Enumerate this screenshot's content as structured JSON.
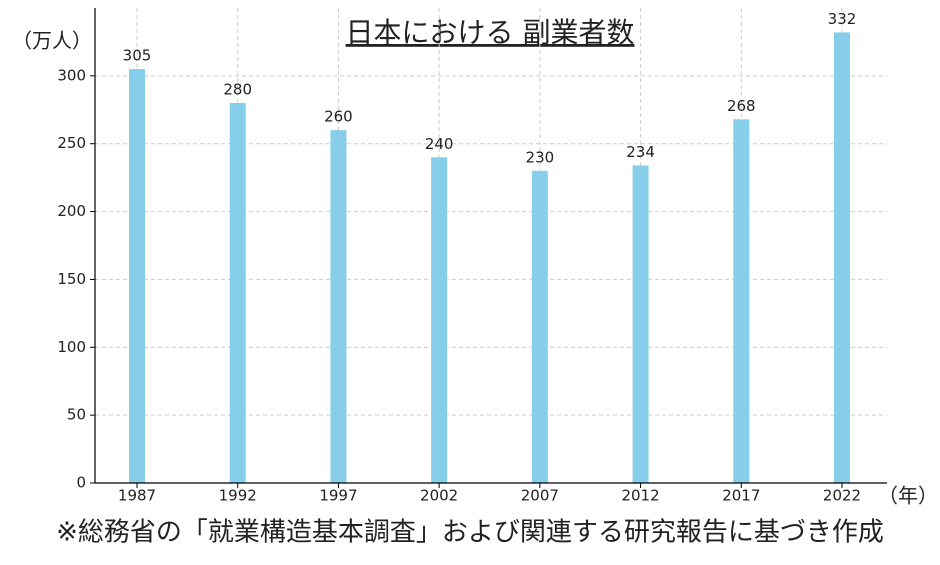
{
  "chart_data": {
    "type": "bar",
    "title": "日本における 副業者数",
    "y_label": "（万人）",
    "x_label": "（年）",
    "footnote": "※総務省の「就業構造基本調査」および関連する研究報告に基づき作成",
    "categories": [
      "1987",
      "1992",
      "1997",
      "2002",
      "2007",
      "2012",
      "2017",
      "2022"
    ],
    "values": [
      305,
      280,
      260,
      240,
      230,
      234,
      268,
      332
    ],
    "color": "#87ceeb",
    "ylim": [
      0,
      350
    ],
    "yticks": [
      0,
      50,
      100,
      150,
      200,
      250,
      300
    ],
    "grid": true
  }
}
